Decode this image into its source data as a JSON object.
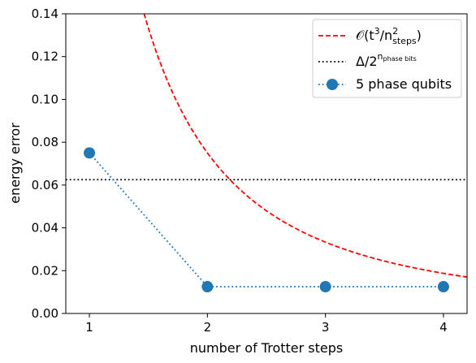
{
  "chart_data": {
    "type": "line",
    "xlabel": "number of Trotter steps",
    "ylabel": "energy error",
    "xlim": [
      0.8,
      4.2
    ],
    "ylim": [
      0.0,
      0.14
    ],
    "xticks": [
      "1",
      "2",
      "3",
      "4"
    ],
    "xtick_values": [
      1,
      2,
      3,
      4
    ],
    "yticks": [
      "0.00",
      "0.02",
      "0.04",
      "0.06",
      "0.08",
      "0.10",
      "0.12",
      "0.14"
    ],
    "ytick_values": [
      0.0,
      0.02,
      0.04,
      0.06,
      0.08,
      0.1,
      0.12,
      0.14
    ],
    "grid": false,
    "legend_position": "top-right",
    "series": [
      {
        "name": "5 phase qubits",
        "style": "dotted-line-with-circle-markers",
        "color": "#1f77b4",
        "x": [
          1,
          2,
          3,
          4
        ],
        "y": [
          0.075,
          0.0125,
          0.0125,
          0.0125
        ]
      }
    ],
    "reference_curve": {
      "legend": {
        "O": "𝒪",
        "open": "(t",
        "sup3": "3",
        "slash": "/n",
        "sub": "steps",
        "sup2": "2",
        "close": ")"
      },
      "style": "dashed",
      "color": "#ff0000",
      "form": "C / x^2",
      "C": 0.3
    },
    "reference_line": {
      "legend": {
        "base": "Δ/2",
        "sup": "n",
        "supsub": "phase bits"
      },
      "style": "dotted",
      "color": "#000000",
      "y": 0.0625
    }
  }
}
